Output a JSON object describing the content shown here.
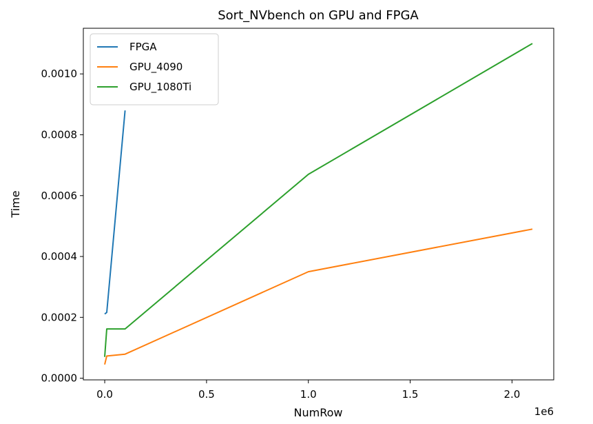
{
  "chart_data": {
    "type": "line",
    "title": "Sort_NVbench on GPU and FPGA",
    "xlabel": "NumRow",
    "ylabel": "Time",
    "x_offset_label": "1e6",
    "xlim": [
      -0.105,
      2.205
    ],
    "ylim": [
      -5.5e-06,
      0.00115
    ],
    "x_ticks": [
      0.0,
      0.5,
      1.0,
      1.5,
      2.0
    ],
    "x_tick_labels": [
      "0.0",
      "0.5",
      "1.0",
      "1.5",
      "2.0"
    ],
    "y_ticks": [
      0.0,
      0.0002,
      0.0004,
      0.0006,
      0.0008,
      0.001
    ],
    "y_tick_labels": [
      "0.0000",
      "0.0002",
      "0.0004",
      "0.0006",
      "0.0008",
      "0.0010"
    ],
    "grid": false,
    "legend_position": "top-left",
    "series": [
      {
        "name": "FPGA",
        "color": "#1f77b4",
        "x": [
          0.0,
          0.01,
          0.1
        ],
        "y": [
          0.000211,
          0.000216,
          0.00088
        ]
      },
      {
        "name": "GPU_4090",
        "color": "#ff7f0e",
        "x": [
          0.0,
          0.01,
          0.1,
          1.0,
          2.1
        ],
        "y": [
          4.5e-05,
          7.3e-05,
          7.9e-05,
          0.00035,
          0.00049
        ]
      },
      {
        "name": "GPU_1080Ti",
        "color": "#2ca02c",
        "x": [
          0.0,
          0.01,
          0.1,
          1.0,
          2.1
        ],
        "y": [
          7e-05,
          0.000162,
          0.000162,
          0.00067,
          0.0011
        ]
      }
    ]
  }
}
